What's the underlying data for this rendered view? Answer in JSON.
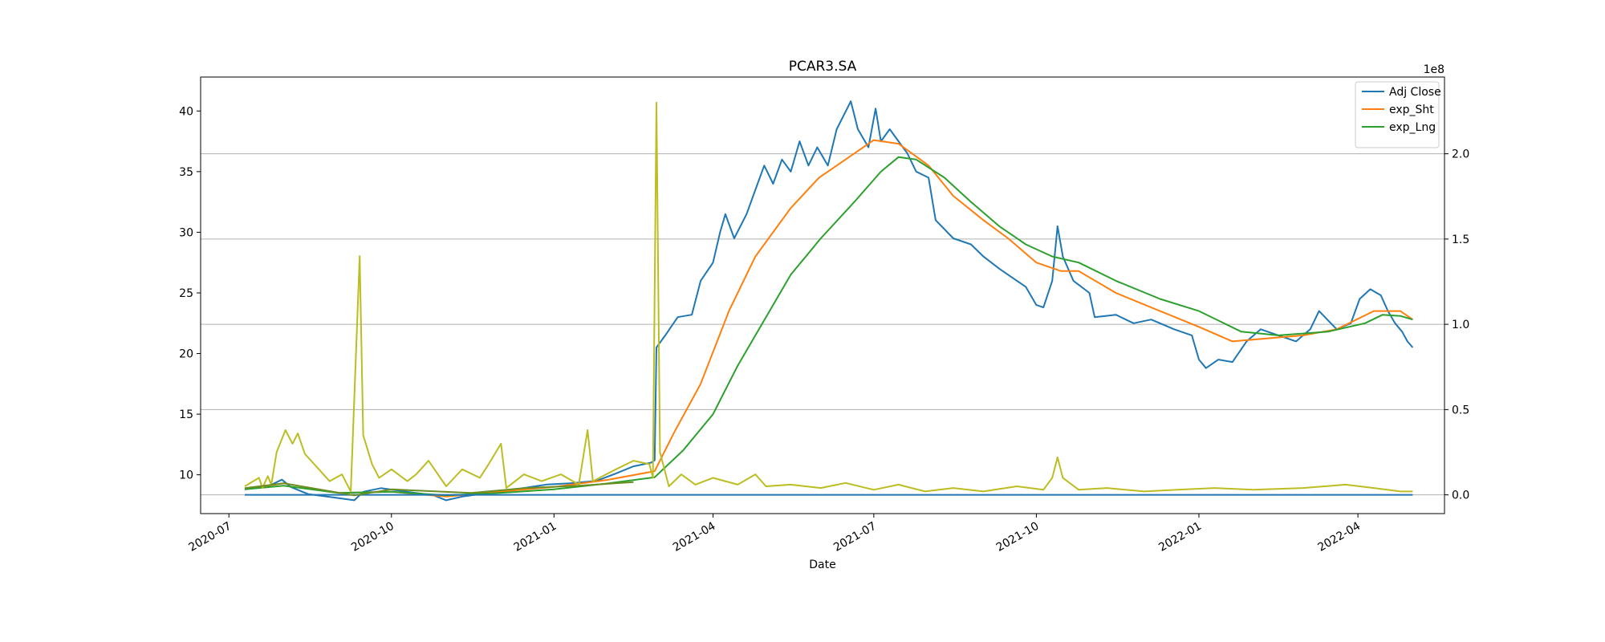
{
  "chart_data": {
    "type": "line",
    "title": "PCAR3.SA",
    "xlabel": "Date",
    "ylabel": "",
    "y2_label_offset": "1e8",
    "x_axis_type": "date",
    "x_range": [
      "2020-06-15",
      "2022-05-20"
    ],
    "x_ticks": [
      "2020-07",
      "2020-10",
      "2021-01",
      "2021-04",
      "2021-07",
      "2021-10",
      "2022-01",
      "2022-04"
    ],
    "ylim": [
      6.8,
      42.8
    ],
    "y_ticks": [
      10,
      15,
      20,
      25,
      30,
      35,
      40
    ],
    "y2lim": [
      -0.11,
      2.45
    ],
    "y2_ticks": [
      "0.0",
      "0.5",
      "1.0",
      "1.5",
      "2.0"
    ],
    "y2_tick_values": [
      0,
      0.5,
      1.0,
      1.5,
      2.0
    ],
    "grid": "horizontal lines at right-axis ticks",
    "legend": {
      "position": "top-right",
      "entries": [
        "Adj Close",
        "exp_Sht",
        "exp_Lng"
      ]
    },
    "series": [
      {
        "name": "Adj Close",
        "axis": "left",
        "color": "#1f77b4",
        "points": [
          [
            "2020-07-10",
            8.8
          ],
          [
            "2020-07-24",
            9.1
          ],
          [
            "2020-07-31",
            9.6
          ],
          [
            "2020-08-05",
            9.0
          ],
          [
            "2020-08-15",
            8.4
          ],
          [
            "2020-08-31",
            8.1
          ],
          [
            "2020-09-10",
            7.9
          ],
          [
            "2020-09-15",
            8.6
          ],
          [
            "2020-09-25",
            8.9
          ],
          [
            "2020-10-10",
            8.6
          ],
          [
            "2020-10-25",
            8.3
          ],
          [
            "2020-11-01",
            7.9
          ],
          [
            "2020-11-10",
            8.2
          ],
          [
            "2020-11-25",
            8.5
          ],
          [
            "2020-12-10",
            8.8
          ],
          [
            "2020-12-28",
            9.2
          ],
          [
            "2021-01-10",
            9.3
          ],
          [
            "2021-01-25",
            9.5
          ],
          [
            "2021-02-05",
            10.1
          ],
          [
            "2021-02-15",
            10.7
          ],
          [
            "2021-02-25",
            11.0
          ],
          [
            "2021-02-27",
            11.2
          ],
          [
            "2021-02-28",
            20.5
          ],
          [
            "2021-03-05",
            21.5
          ],
          [
            "2021-03-12",
            23.0
          ],
          [
            "2021-03-20",
            23.2
          ],
          [
            "2021-03-25",
            26.0
          ],
          [
            "2021-04-01",
            27.5
          ],
          [
            "2021-04-05",
            30.0
          ],
          [
            "2021-04-08",
            31.5
          ],
          [
            "2021-04-13",
            29.5
          ],
          [
            "2021-04-20",
            31.5
          ],
          [
            "2021-04-25",
            33.5
          ],
          [
            "2021-04-30",
            35.5
          ],
          [
            "2021-05-05",
            34.0
          ],
          [
            "2021-05-10",
            36.0
          ],
          [
            "2021-05-15",
            35.0
          ],
          [
            "2021-05-20",
            37.5
          ],
          [
            "2021-05-25",
            35.5
          ],
          [
            "2021-05-30",
            37.0
          ],
          [
            "2021-06-05",
            35.5
          ],
          [
            "2021-06-10",
            38.5
          ],
          [
            "2021-06-18",
            40.8
          ],
          [
            "2021-06-22",
            38.5
          ],
          [
            "2021-06-28",
            37.0
          ],
          [
            "2021-07-02",
            40.2
          ],
          [
            "2021-07-05",
            37.5
          ],
          [
            "2021-07-10",
            38.5
          ],
          [
            "2021-07-15",
            37.5
          ],
          [
            "2021-07-20",
            36.5
          ],
          [
            "2021-07-25",
            35.0
          ],
          [
            "2021-08-01",
            34.5
          ],
          [
            "2021-08-05",
            31.0
          ],
          [
            "2021-08-15",
            29.5
          ],
          [
            "2021-08-25",
            29.0
          ],
          [
            "2021-09-01",
            28.0
          ],
          [
            "2021-09-10",
            27.0
          ],
          [
            "2021-09-20",
            26.0
          ],
          [
            "2021-09-25",
            25.5
          ],
          [
            "2021-10-01",
            24.0
          ],
          [
            "2021-10-05",
            23.8
          ],
          [
            "2021-10-10",
            26.0
          ],
          [
            "2021-10-13",
            30.5
          ],
          [
            "2021-10-16",
            28.0
          ],
          [
            "2021-10-22",
            26.0
          ],
          [
            "2021-10-31",
            25.0
          ],
          [
            "2021-11-03",
            23.0
          ],
          [
            "2021-11-15",
            23.2
          ],
          [
            "2021-11-25",
            22.5
          ],
          [
            "2021-12-05",
            22.8
          ],
          [
            "2021-12-18",
            22.0
          ],
          [
            "2021-12-28",
            21.5
          ],
          [
            "2022-01-01",
            19.5
          ],
          [
            "2022-01-05",
            18.8
          ],
          [
            "2022-01-12",
            19.5
          ],
          [
            "2022-01-20",
            19.3
          ],
          [
            "2022-01-28",
            21.0
          ],
          [
            "2022-02-05",
            22.0
          ],
          [
            "2022-02-15",
            21.5
          ],
          [
            "2022-02-25",
            21.0
          ],
          [
            "2022-03-05",
            22.0
          ],
          [
            "2022-03-10",
            23.5
          ],
          [
            "2022-03-20",
            22.0
          ],
          [
            "2022-03-28",
            22.5
          ],
          [
            "2022-04-02",
            24.5
          ],
          [
            "2022-04-08",
            25.3
          ],
          [
            "2022-04-14",
            24.8
          ],
          [
            "2022-04-18",
            23.5
          ],
          [
            "2022-04-22",
            22.5
          ],
          [
            "2022-04-26",
            21.8
          ],
          [
            "2022-04-29",
            21.0
          ],
          [
            "2022-05-02",
            20.5
          ]
        ]
      },
      {
        "name": "exp_Sht",
        "axis": "left",
        "color": "#ff7f0e",
        "points": [
          [
            "2020-07-10",
            8.8
          ],
          [
            "2020-08-01",
            9.3
          ],
          [
            "2020-09-01",
            8.5
          ],
          [
            "2020-10-01",
            8.6
          ],
          [
            "2020-11-01",
            8.2
          ],
          [
            "2020-12-01",
            8.6
          ],
          [
            "2021-01-01",
            9.0
          ],
          [
            "2021-02-01",
            9.6
          ],
          [
            "2021-02-27",
            10.3
          ],
          [
            "2021-03-10",
            13.5
          ],
          [
            "2021-03-25",
            17.5
          ],
          [
            "2021-04-10",
            23.5
          ],
          [
            "2021-04-25",
            28.0
          ],
          [
            "2021-05-15",
            32.0
          ],
          [
            "2021-05-31",
            34.5
          ],
          [
            "2021-06-20",
            36.5
          ],
          [
            "2021-07-01",
            37.6
          ],
          [
            "2021-07-15",
            37.3
          ],
          [
            "2021-08-01",
            35.5
          ],
          [
            "2021-08-15",
            33.0
          ],
          [
            "2021-09-01",
            31.0
          ],
          [
            "2021-09-15",
            29.5
          ],
          [
            "2021-10-01",
            27.5
          ],
          [
            "2021-10-15",
            26.8
          ],
          [
            "2021-10-25",
            26.8
          ],
          [
            "2021-11-15",
            25.0
          ],
          [
            "2021-12-10",
            23.5
          ],
          [
            "2022-01-01",
            22.2
          ],
          [
            "2022-01-20",
            21.0
          ],
          [
            "2022-02-05",
            21.2
          ],
          [
            "2022-03-01",
            21.5
          ],
          [
            "2022-03-20",
            22.0
          ],
          [
            "2022-04-10",
            23.5
          ],
          [
            "2022-04-25",
            23.5
          ],
          [
            "2022-05-02",
            22.8
          ]
        ]
      },
      {
        "name": "exp_Lng",
        "axis": "left",
        "color": "#2ca02c",
        "points": [
          [
            "2020-07-10",
            8.8
          ],
          [
            "2020-08-01",
            9.1
          ],
          [
            "2020-09-01",
            8.5
          ],
          [
            "2020-10-01",
            8.6
          ],
          [
            "2020-11-01",
            8.3
          ],
          [
            "2020-12-01",
            8.5
          ],
          [
            "2021-01-01",
            8.8
          ],
          [
            "2021-02-01",
            9.3
          ],
          [
            "2021-02-27",
            9.8
          ],
          [
            "2021-03-15",
            12.0
          ],
          [
            "2021-04-01",
            15.0
          ],
          [
            "2021-04-15",
            19.0
          ],
          [
            "2021-05-01",
            23.0
          ],
          [
            "2021-05-15",
            26.5
          ],
          [
            "2021-06-01",
            29.5
          ],
          [
            "2021-06-20",
            32.5
          ],
          [
            "2021-07-05",
            35.0
          ],
          [
            "2021-07-15",
            36.2
          ],
          [
            "2021-07-25",
            36.0
          ],
          [
            "2021-08-10",
            34.5
          ],
          [
            "2021-08-25",
            32.5
          ],
          [
            "2021-09-10",
            30.5
          ],
          [
            "2021-09-25",
            29.0
          ],
          [
            "2021-10-10",
            28.0
          ],
          [
            "2021-10-25",
            27.5
          ],
          [
            "2021-11-15",
            26.0
          ],
          [
            "2021-12-10",
            24.5
          ],
          [
            "2022-01-01",
            23.5
          ],
          [
            "2022-01-25",
            21.8
          ],
          [
            "2022-02-15",
            21.5
          ],
          [
            "2022-03-15",
            21.8
          ],
          [
            "2022-04-05",
            22.5
          ],
          [
            "2022-04-15",
            23.2
          ],
          [
            "2022-04-25",
            23.1
          ],
          [
            "2022-05-02",
            22.8
          ]
        ]
      },
      {
        "name": "",
        "axis": "right",
        "color": "#bcbd22",
        "points": [
          [
            "2020-07-10",
            0.05
          ],
          [
            "2020-07-18",
            0.1
          ],
          [
            "2020-07-20",
            0.04
          ],
          [
            "2020-07-23",
            0.11
          ],
          [
            "2020-07-25",
            0.06
          ],
          [
            "2020-07-28",
            0.25
          ],
          [
            "2020-08-02",
            0.38
          ],
          [
            "2020-08-06",
            0.3
          ],
          [
            "2020-08-09",
            0.36
          ],
          [
            "2020-08-13",
            0.24
          ],
          [
            "2020-08-20",
            0.16
          ],
          [
            "2020-08-27",
            0.08
          ],
          [
            "2020-09-03",
            0.12
          ],
          [
            "2020-09-08",
            0.02
          ],
          [
            "2020-09-13",
            1.4
          ],
          [
            "2020-09-15",
            0.35
          ],
          [
            "2020-09-20",
            0.18
          ],
          [
            "2020-09-24",
            0.1
          ],
          [
            "2020-10-01",
            0.15
          ],
          [
            "2020-10-10",
            0.08
          ],
          [
            "2020-10-15",
            0.12
          ],
          [
            "2020-10-22",
            0.2
          ],
          [
            "2020-11-01",
            0.05
          ],
          [
            "2020-11-10",
            0.15
          ],
          [
            "2020-11-20",
            0.1
          ],
          [
            "2020-11-25",
            0.18
          ],
          [
            "2020-12-02",
            0.3
          ],
          [
            "2020-12-05",
            0.04
          ],
          [
            "2020-12-15",
            0.12
          ],
          [
            "2020-12-25",
            0.08
          ],
          [
            "2021-01-05",
            0.12
          ],
          [
            "2021-01-15",
            0.06
          ],
          [
            "2021-01-20",
            0.38
          ],
          [
            "2021-01-23",
            0.08
          ],
          [
            "2021-02-05",
            0.15
          ],
          [
            "2021-02-15",
            0.2
          ],
          [
            "2021-02-24",
            0.18
          ],
          [
            "2021-02-26",
            0.1
          ],
          [
            "2021-02-28",
            2.3
          ],
          [
            "2021-03-02",
            0.25
          ],
          [
            "2021-03-07",
            0.05
          ],
          [
            "2021-03-14",
            0.12
          ],
          [
            "2021-03-22",
            0.06
          ],
          [
            "2021-04-01",
            0.1
          ],
          [
            "2021-04-15",
            0.06
          ],
          [
            "2021-04-25",
            0.12
          ],
          [
            "2021-05-01",
            0.05
          ],
          [
            "2021-05-15",
            0.06
          ],
          [
            "2021-06-01",
            0.04
          ],
          [
            "2021-06-15",
            0.07
          ],
          [
            "2021-07-01",
            0.03
          ],
          [
            "2021-07-15",
            0.06
          ],
          [
            "2021-07-30",
            0.02
          ],
          [
            "2021-08-15",
            0.04
          ],
          [
            "2021-09-01",
            0.02
          ],
          [
            "2021-09-20",
            0.05
          ],
          [
            "2021-10-05",
            0.03
          ],
          [
            "2021-10-10",
            0.1
          ],
          [
            "2021-10-13",
            0.22
          ],
          [
            "2021-10-16",
            0.1
          ],
          [
            "2021-10-25",
            0.03
          ],
          [
            "2021-11-10",
            0.04
          ],
          [
            "2021-12-01",
            0.02
          ],
          [
            "2021-12-20",
            0.03
          ],
          [
            "2022-01-10",
            0.04
          ],
          [
            "2022-02-01",
            0.03
          ],
          [
            "2022-03-01",
            0.04
          ],
          [
            "2022-03-25",
            0.06
          ],
          [
            "2022-04-10",
            0.04
          ],
          [
            "2022-04-25",
            0.02
          ],
          [
            "2022-05-02",
            0.02
          ]
        ]
      },
      {
        "name": "",
        "axis": "right",
        "color": "#1f77b4",
        "points": [
          [
            "2020-07-10",
            0.0
          ],
          [
            "2022-05-02",
            0.0
          ]
        ]
      },
      {
        "name": "",
        "axis": "left",
        "color": "#6b8e23",
        "points": [
          [
            "2020-07-10",
            8.9
          ],
          [
            "2020-08-01",
            9.3
          ],
          [
            "2020-09-10",
            8.3
          ],
          [
            "2020-10-01",
            8.8
          ],
          [
            "2020-11-15",
            8.5
          ],
          [
            "2020-12-15",
            8.9
          ],
          [
            "2021-01-15",
            9.1
          ],
          [
            "2021-02-15",
            9.4
          ]
        ]
      }
    ]
  }
}
